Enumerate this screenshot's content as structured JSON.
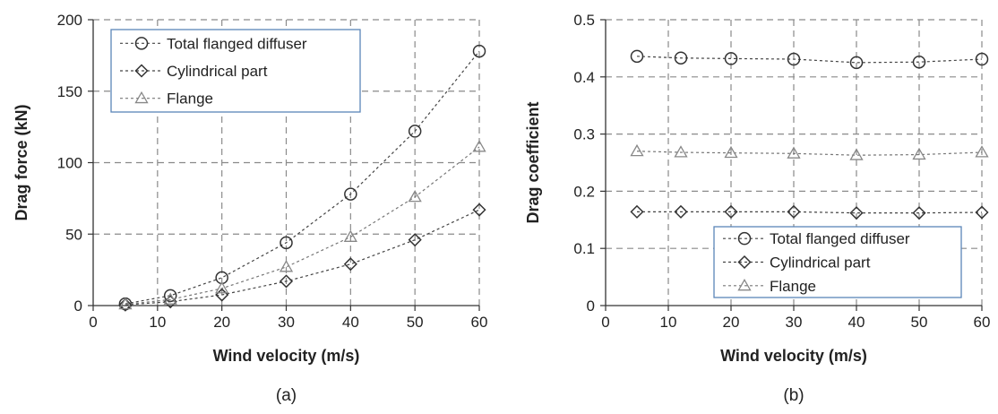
{
  "chart_data": [
    {
      "type": "line",
      "panel_label": "(a)",
      "title": "",
      "xlabel": "Wind velocity (m/s)",
      "ylabel": "Drag force (kN)",
      "xlim": [
        0,
        60
      ],
      "ylim": [
        0,
        200
      ],
      "xticks": [
        0,
        10,
        20,
        30,
        40,
        50,
        60
      ],
      "yticks": [
        0,
        50,
        100,
        150,
        200
      ],
      "grid": true,
      "legend_position": "top-left",
      "x": [
        5,
        12,
        20,
        30,
        40,
        50,
        60
      ],
      "series": [
        {
          "name": "Total flanged diffuser",
          "marker": "circle",
          "values": [
            1.2,
            7,
            19.5,
            44,
            78,
            122,
            178
          ]
        },
        {
          "name": "Cylindrical part",
          "marker": "diamond",
          "values": [
            0.5,
            2.7,
            7.5,
            17,
            29,
            46,
            67
          ]
        },
        {
          "name": "Flange",
          "marker": "triangle",
          "values": [
            0.8,
            4.2,
            12,
            27,
            48,
            76,
            111
          ]
        }
      ]
    },
    {
      "type": "line",
      "panel_label": "(b)",
      "title": "",
      "xlabel": "Wind velocity (m/s)",
      "ylabel": "Drag coefficient",
      "xlim": [
        0,
        60
      ],
      "ylim": [
        0,
        0.5
      ],
      "xticks": [
        0,
        10,
        20,
        30,
        40,
        50,
        60
      ],
      "yticks": [
        0,
        0.1,
        0.2,
        0.3,
        0.4,
        0.5
      ],
      "grid": true,
      "legend_position": "bottom-right",
      "x": [
        5,
        12,
        20,
        30,
        40,
        50,
        60
      ],
      "series": [
        {
          "name": "Total flanged diffuser",
          "marker": "circle",
          "values": [
            0.436,
            0.433,
            0.432,
            0.431,
            0.425,
            0.426,
            0.431
          ]
        },
        {
          "name": "Cylindrical part",
          "marker": "diamond",
          "values": [
            0.164,
            0.164,
            0.164,
            0.164,
            0.162,
            0.162,
            0.163
          ]
        },
        {
          "name": "Flange",
          "marker": "triangle",
          "values": [
            0.27,
            0.268,
            0.267,
            0.266,
            0.263,
            0.264,
            0.268
          ]
        }
      ]
    }
  ]
}
